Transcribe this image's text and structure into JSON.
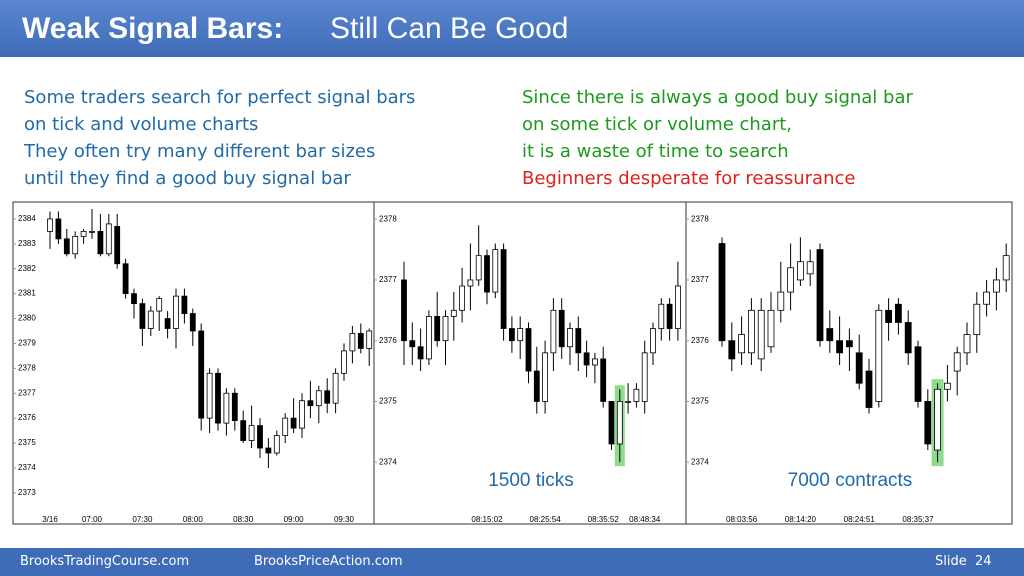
{
  "header": {
    "title_bold": "Weak Signal Bars:",
    "title_rest": "Still Can Be Good"
  },
  "text_left": [
    "Some traders search for perfect signal bars",
    "on tick and volume charts",
    "They often try many different bar sizes",
    "until they find a good buy signal bar"
  ],
  "text_right": [
    "Since there is always a good buy signal bar",
    "on some tick or volume chart,",
    "it is a waste of time to search",
    "Beginners desperate for reassurance"
  ],
  "footer": {
    "left": "BrooksTradingCourse.com",
    "middle": "BrooksPriceAction.com",
    "slide": "Slide  24"
  },
  "chart_data": [
    {
      "type": "candlestick",
      "categories": [
        "3/16",
        null,
        null,
        null,
        null,
        "07:00",
        null,
        null,
        null,
        null,
        null,
        "07:30",
        null,
        null,
        null,
        null,
        null,
        "08:00",
        null,
        null,
        null,
        null,
        null,
        "08:30",
        null,
        null,
        null,
        null,
        null,
        "09:00",
        null,
        null,
        null,
        null,
        null,
        "09:30",
        null,
        null,
        null
      ],
      "open": [
        2383.5,
        2384.0,
        2383.2,
        2382.6,
        2383.3,
        2383.5,
        2383.5,
        2382.6,
        2383.7,
        2382.2,
        2381.0,
        2380.6,
        2379.6,
        2380.3,
        2380.0,
        2379.6,
        2380.9,
        2380.2,
        2379.5,
        2376.0,
        2377.8,
        2375.8,
        2377.0,
        2375.9,
        2375.1,
        2375.7,
        2374.8,
        2374.6,
        2375.3,
        2376.0,
        2375.6,
        2376.7,
        2376.5,
        2377.1,
        2376.6,
        2377.8,
        2378.7,
        2379.4,
        2378.8
      ],
      "high": [
        2384.3,
        2384.3,
        2383.6,
        2383.5,
        2383.6,
        2384.4,
        2384.2,
        2384.2,
        2384.2,
        2382.4,
        2381.2,
        2380.8,
        2380.5,
        2380.9,
        2380.3,
        2381.2,
        2381.2,
        2380.4,
        2379.8,
        2378.0,
        2378.0,
        2377.2,
        2377.2,
        2376.3,
        2376.5,
        2376.0,
        2375.2,
        2375.5,
        2376.2,
        2376.8,
        2377.0,
        2377.5,
        2377.3,
        2377.6,
        2378.0,
        2379.0,
        2379.7,
        2379.8,
        2379.6
      ],
      "low": [
        2382.8,
        2383.0,
        2382.5,
        2382.4,
        2383.0,
        2383.2,
        2382.5,
        2382.5,
        2382.0,
        2380.8,
        2380.0,
        2378.9,
        2379.3,
        2379.5,
        2379.2,
        2378.8,
        2379.8,
        2378.9,
        2375.5,
        2375.4,
        2375.5,
        2375.3,
        2375.5,
        2375.0,
        2374.8,
        2374.4,
        2374.0,
        2374.5,
        2375.0,
        2375.4,
        2375.2,
        2376.0,
        2375.8,
        2376.2,
        2376.2,
        2377.5,
        2378.2,
        2378.6,
        2378.1
      ],
      "close": [
        2384.0,
        2383.2,
        2382.6,
        2383.3,
        2383.5,
        2383.5,
        2382.6,
        2383.8,
        2382.2,
        2381.0,
        2380.6,
        2379.6,
        2380.3,
        2380.8,
        2379.6,
        2380.9,
        2380.2,
        2379.5,
        2376.0,
        2377.8,
        2375.8,
        2377.0,
        2375.9,
        2375.1,
        2375.7,
        2374.8,
        2374.6,
        2375.3,
        2376.0,
        2375.6,
        2376.7,
        2376.5,
        2377.1,
        2376.6,
        2377.8,
        2378.7,
        2379.4,
        2378.8,
        2379.5
      ],
      "ylim": [
        2372.23,
        2384.6
      ],
      "yticks": [
        2373,
        2374,
        2375,
        2376,
        2377,
        2378,
        2379,
        2380,
        2381,
        2382,
        2383,
        2384
      ],
      "up_color": "#ffffff",
      "down_color": "#000000"
    },
    {
      "type": "candlestick",
      "categories": [
        null,
        null,
        null,
        null,
        null,
        null,
        null,
        null,
        null,
        null,
        "08:15:02",
        null,
        null,
        null,
        null,
        null,
        null,
        "08:25:54",
        null,
        null,
        null,
        null,
        null,
        null,
        "08:35:52",
        null,
        null,
        null,
        null,
        "08:48:34",
        null,
        null,
        null,
        null
      ],
      "open": [
        2377.0,
        2376.0,
        2375.9,
        2375.7,
        2376.4,
        2376.0,
        2376.4,
        2376.5,
        2376.9,
        2377.0,
        2377.4,
        2376.8,
        2377.5,
        2376.2,
        2376.0,
        2376.2,
        2375.5,
        2375.0,
        2375.8,
        2376.5,
        2375.9,
        2376.2,
        2375.8,
        2375.6,
        2375.7,
        2375.0,
        2374.3,
        2375.0,
        2375.0,
        2375.0,
        2375.8,
        2376.2,
        2376.6,
        2376.2
      ],
      "high": [
        2377.3,
        2376.3,
        2376.2,
        2376.5,
        2376.8,
        2376.5,
        2376.8,
        2377.2,
        2377.6,
        2377.9,
        2377.5,
        2377.6,
        2377.6,
        2376.4,
        2376.4,
        2376.3,
        2375.9,
        2376.0,
        2376.7,
        2376.7,
        2376.3,
        2376.4,
        2376.0,
        2375.8,
        2375.9,
        2375.0,
        2375.2,
        2375.3,
        2375.3,
        2376.0,
        2376.3,
        2376.7,
        2376.7,
        2377.3
      ],
      "low": [
        2375.6,
        2375.6,
        2375.5,
        2375.6,
        2375.9,
        2375.6,
        2376.0,
        2376.3,
        2376.5,
        2376.9,
        2376.6,
        2376.7,
        2376.0,
        2375.8,
        2375.7,
        2375.3,
        2374.8,
        2374.8,
        2375.5,
        2375.7,
        2375.6,
        2375.5,
        2375.4,
        2375.3,
        2374.9,
        2374.2,
        2374.0,
        2374.8,
        2374.9,
        2374.8,
        2375.6,
        2376.0,
        2376.0,
        2376.0
      ],
      "close": [
        2376.0,
        2375.9,
        2375.7,
        2376.4,
        2376.0,
        2376.4,
        2376.5,
        2376.9,
        2377.0,
        2377.4,
        2376.8,
        2377.5,
        2376.2,
        2376.0,
        2376.2,
        2375.5,
        2375.0,
        2375.8,
        2376.5,
        2375.9,
        2376.2,
        2375.8,
        2375.6,
        2375.7,
        2375.0,
        2374.3,
        2375.0,
        2375.0,
        2375.2,
        2375.8,
        2376.2,
        2376.6,
        2376.2,
        2376.9
      ],
      "ylim": [
        2373.18,
        2378.25
      ],
      "yticks": [
        2374,
        2375,
        2376,
        2377,
        2378
      ],
      "up_color": "#ffffff",
      "down_color": "#000000",
      "highlight": {
        "index": 26,
        "color": "#8fdc8f"
      },
      "annotation": "1500 ticks"
    },
    {
      "type": "candlestick",
      "categories": [
        null,
        null,
        "08:03:56",
        null,
        null,
        null,
        null,
        null,
        "08:14:20",
        null,
        null,
        null,
        null,
        null,
        "08:24:51",
        null,
        null,
        null,
        null,
        null,
        "08:35:37",
        null,
        null,
        null,
        null,
        null,
        null,
        null,
        null,
        null
      ],
      "open": [
        2377.6,
        2376.0,
        2375.8,
        2375.8,
        2375.7,
        2375.9,
        2376.5,
        2376.8,
        2377.0,
        2377.1,
        2377.5,
        2376.2,
        2376.0,
        2376.0,
        2375.8,
        2375.5,
        2375.0,
        2376.5,
        2376.6,
        2376.3,
        2375.9,
        2375.0,
        2374.2,
        2375.2,
        2375.5,
        2375.8,
        2376.1,
        2376.6,
        2376.8,
        2377.0
      ],
      "high": [
        2377.7,
        2376.3,
        2376.4,
        2376.7,
        2376.7,
        2376.8,
        2377.3,
        2377.6,
        2377.7,
        2377.5,
        2377.6,
        2376.5,
        2376.4,
        2376.2,
        2376.1,
        2375.7,
        2376.6,
        2376.7,
        2376.7,
        2376.5,
        2376.0,
        2375.2,
        2375.3,
        2375.6,
        2375.9,
        2376.3,
        2376.8,
        2377.0,
        2377.2,
        2377.6
      ],
      "low": [
        2375.9,
        2375.5,
        2375.6,
        2375.6,
        2375.5,
        2375.8,
        2376.3,
        2376.5,
        2376.9,
        2376.9,
        2375.9,
        2375.8,
        2375.6,
        2375.5,
        2375.2,
        2374.8,
        2374.9,
        2376.0,
        2376.1,
        2375.6,
        2374.9,
        2374.2,
        2374.0,
        2375.0,
        2375.1,
        2375.6,
        2375.8,
        2376.4,
        2376.5,
        2376.8
      ],
      "close": [
        2376.0,
        2375.7,
        2376.1,
        2376.5,
        2376.5,
        2376.5,
        2376.8,
        2377.2,
        2377.3,
        2377.3,
        2376.0,
        2376.0,
        2375.8,
        2375.9,
        2375.3,
        2374.9,
        2376.5,
        2376.3,
        2376.3,
        2375.8,
        2375.0,
        2374.3,
        2375.2,
        2375.3,
        2375.8,
        2376.1,
        2376.6,
        2376.8,
        2377.0,
        2377.4
      ],
      "ylim": [
        2373.18,
        2378.25
      ],
      "yticks": [
        2374,
        2375,
        2376,
        2377,
        2378
      ],
      "up_color": "#ffffff",
      "down_color": "#000000",
      "highlight": {
        "index": 22,
        "color": "#8fdc8f"
      },
      "annotation": "7000 contracts"
    }
  ]
}
